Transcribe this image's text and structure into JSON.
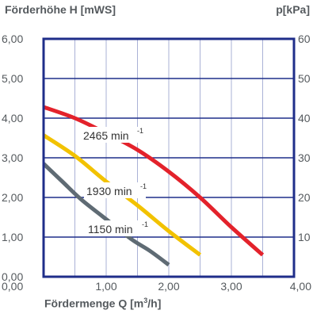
{
  "chart_data": {
    "type": "line",
    "ylabel_left": "Förderhöhe H [mWS]",
    "ylabel_right": "p[kPa]",
    "xlabel": "Fördermenge Q [m3/h]",
    "xlabel_parts": {
      "prefix": "Fördermenge Q [m",
      "sup": "3",
      "suffix": "/h]"
    },
    "xlim": [
      0,
      4
    ],
    "ylim": [
      0,
      6
    ],
    "y2lim": [
      0,
      60
    ],
    "x_ticks": [
      "0,00",
      "1,00",
      "2,00",
      "3,00",
      "4,00"
    ],
    "y_ticks": [
      "0,00",
      "1,00",
      "2,00",
      "3,00",
      "4,00",
      "5,00",
      "6,00"
    ],
    "y2_ticks": [
      "",
      "10",
      "20",
      "30",
      "40",
      "50",
      "60"
    ],
    "grid": true,
    "series": [
      {
        "name": "2465 min-1",
        "label_text": "2465 min",
        "label_exp": "-1",
        "color": "#e3222b",
        "x": [
          0,
          0.5,
          1.0,
          1.5,
          2.0,
          2.5,
          3.0,
          3.5
        ],
        "y": [
          4.28,
          4.0,
          3.62,
          3.2,
          2.65,
          2.0,
          1.25,
          0.55
        ]
      },
      {
        "name": "1930 min-1",
        "label_text": "1930 min",
        "label_exp": "-1",
        "color": "#f2c200",
        "x": [
          0,
          0.5,
          1.0,
          1.5,
          2.0,
          2.5
        ],
        "y": [
          3.57,
          3.05,
          2.4,
          1.8,
          1.15,
          0.55
        ]
      },
      {
        "name": "1150 min-1",
        "label_text": "1150 min",
        "label_exp": "-1",
        "color": "#5f6b74",
        "x": [
          0,
          0.3,
          0.6,
          1.0,
          1.4,
          1.7,
          2.0
        ],
        "y": [
          2.85,
          2.4,
          1.95,
          1.45,
          0.95,
          0.65,
          0.3
        ]
      }
    ]
  }
}
